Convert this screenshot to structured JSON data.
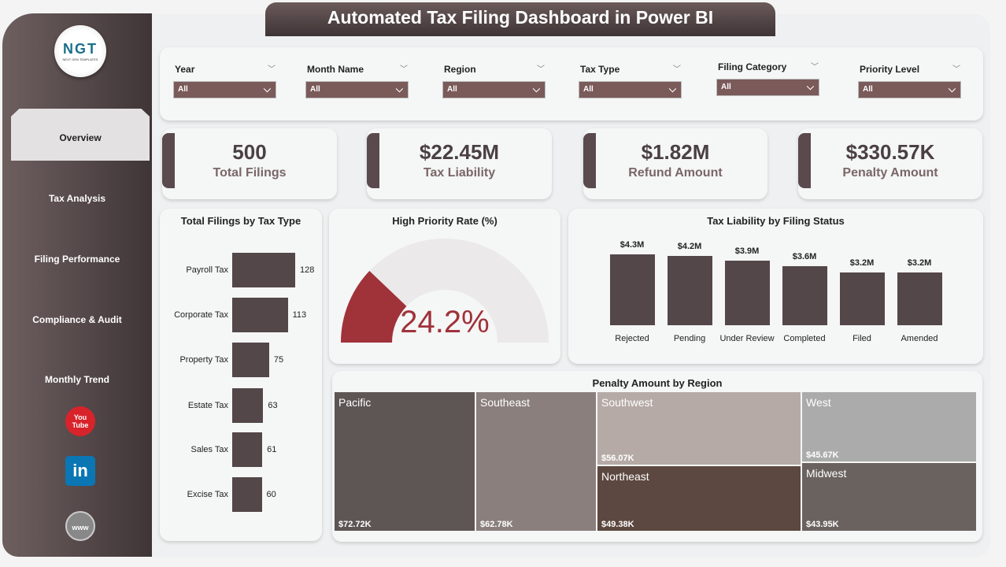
{
  "title": "Automated Tax Filing Dashboard in Power BI",
  "logo": {
    "text": "NGT",
    "subtitle": "NEXT GEN TEMPLATES"
  },
  "sidebar": {
    "items": [
      {
        "label": "Overview",
        "active": true
      },
      {
        "label": "Tax Analysis"
      },
      {
        "label": "Filing Performance"
      },
      {
        "label": "Compliance & Audit"
      },
      {
        "label": "Monthly Trend"
      }
    ],
    "social": [
      {
        "icon": "youtube-icon",
        "label": "You Tube",
        "color": "#d9232a"
      },
      {
        "icon": "linkedin-icon",
        "label": "in",
        "color": "#0a76b4"
      },
      {
        "icon": "globe-icon",
        "label": "www",
        "color": "#888"
      }
    ]
  },
  "filters": [
    {
      "label": "Year",
      "value": "All"
    },
    {
      "label": "Month Name",
      "value": "All"
    },
    {
      "label": "Region",
      "value": "All"
    },
    {
      "label": "Tax Type",
      "value": "All"
    },
    {
      "label": "Filing Category",
      "value": "All"
    },
    {
      "label": "Priority Level",
      "value": "All"
    }
  ],
  "kpis": [
    {
      "value": "500",
      "label": "Total Filings"
    },
    {
      "value": "$22.45M",
      "label": "Tax Liability"
    },
    {
      "value": "$1.82M",
      "label": "Refund Amount"
    },
    {
      "value": "$330.57K",
      "label": "Penalty Amount"
    }
  ],
  "chart_data": [
    {
      "type": "bar",
      "orientation": "horizontal",
      "title": "Total Filings by Tax Type",
      "categories": [
        "Payroll Tax",
        "Corporate Tax",
        "Property Tax",
        "Estate Tax",
        "Sales Tax",
        "Excise Tax"
      ],
      "values": [
        128,
        113,
        75,
        63,
        61,
        60
      ],
      "color": "#544749"
    },
    {
      "type": "gauge",
      "title": "High Priority Rate (%)",
      "value": 24.2,
      "label": "24.2%",
      "range": [
        0,
        100
      ],
      "color": "#a0323a"
    },
    {
      "type": "bar",
      "title": "Tax Liability by Filing Status",
      "categories": [
        "Rejected",
        "Pending",
        "Under Review",
        "Completed",
        "Filed",
        "Amended"
      ],
      "values": [
        4.3,
        4.2,
        3.9,
        3.6,
        3.2,
        3.2
      ],
      "labels": [
        "$4.3M",
        "$4.2M",
        "$3.9M",
        "$3.6M",
        "$3.2M",
        "$3.2M"
      ],
      "unit": "$M",
      "color": "#544749"
    },
    {
      "type": "treemap",
      "title": "Penalty Amount by Region",
      "items": [
        {
          "name": "Pacific",
          "label": "$72.72K",
          "value": 72.72,
          "color": "#5e5655"
        },
        {
          "name": "Southeast",
          "label": "$62.78K",
          "value": 62.78,
          "color": "#8a7f7d"
        },
        {
          "name": "Southwest",
          "label": "$56.07K",
          "value": 56.07,
          "color": "#b6aaa6"
        },
        {
          "name": "Northeast",
          "label": "$49.38K",
          "value": 49.38,
          "color": "#5c4840"
        },
        {
          "name": "West",
          "label": "$45.67K",
          "value": 45.67,
          "color": "#ababab"
        },
        {
          "name": "Midwest",
          "label": "$43.95K",
          "value": 43.95,
          "color": "#69625f"
        }
      ]
    }
  ]
}
